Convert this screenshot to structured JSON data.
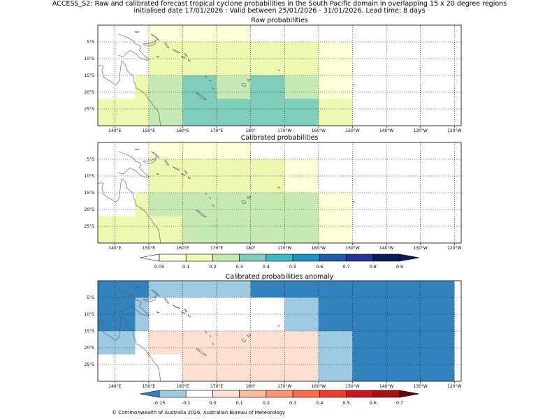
{
  "header": {
    "title_line1": "ACCESS_S2: Raw and calibrated forecast tropical cyclone probabilities in the South Pacific domain in overlapping 15 x 20 degree regions",
    "title_line2": "initialised date 17/01/2026 :  Valid between 25/01/2026 - 31/01/2026. Lead time: 8 days"
  },
  "axes": {
    "lon_labels": [
      "140°E",
      "150°E",
      "160°E",
      "170°E",
      "180°",
      "170°W",
      "160°W",
      "150°W",
      "140°W",
      "130°W",
      "120°W"
    ],
    "lat_labels": [
      "5°S",
      "10°S",
      "15°S",
      "20°S",
      "25°S"
    ]
  },
  "panels": [
    {
      "title": "Raw probabilities",
      "cells": [
        {
          "lon": [
            150,
            160
          ],
          "lat": [
            0,
            -5
          ],
          "value": 0.07
        },
        {
          "lon": [
            160,
            180
          ],
          "lat": [
            0,
            -5
          ],
          "value": 0.07
        },
        {
          "lon": [
            150,
            160
          ],
          "lat": [
            -5,
            -15
          ],
          "value": 0.15
        },
        {
          "lon": [
            160,
            200
          ],
          "lat": [
            -5,
            -15
          ],
          "value": 0.15
        },
        {
          "lon": [
            200,
            210
          ],
          "lat": [
            -5,
            -15
          ],
          "value": 0.07
        },
        {
          "lon": [
            146,
            150
          ],
          "lat": [
            -15,
            -22
          ],
          "value": 0.15
        },
        {
          "lon": [
            140,
            146
          ],
          "lat": [
            -22,
            -30
          ],
          "value": 0.15
        },
        {
          "lon": [
            146,
            150
          ],
          "lat": [
            -22,
            -30
          ],
          "value": 0.15
        },
        {
          "lon": [
            150,
            160
          ],
          "lat": [
            -15,
            -30
          ],
          "value": 0.25
        },
        {
          "lon": [
            160,
            170
          ],
          "lat": [
            -15,
            -30
          ],
          "value": 0.35
        },
        {
          "lon": [
            170,
            180
          ],
          "lat": [
            -15,
            -22
          ],
          "value": 0.25
        },
        {
          "lon": [
            170,
            180
          ],
          "lat": [
            -22,
            -30
          ],
          "value": 0.35
        },
        {
          "lon": [
            180,
            190
          ],
          "lat": [
            -15,
            -30
          ],
          "value": 0.35
        },
        {
          "lon": [
            190,
            200
          ],
          "lat": [
            -15,
            -22
          ],
          "value": 0.25
        },
        {
          "lon": [
            190,
            200
          ],
          "lat": [
            -22,
            -30
          ],
          "value": 0.35
        },
        {
          "lon": [
            200,
            210
          ],
          "lat": [
            -15,
            -22
          ],
          "value": 0.07
        },
        {
          "lon": [
            200,
            210
          ],
          "lat": [
            -22,
            -30
          ],
          "value": 0.15
        }
      ]
    },
    {
      "title": "Calibrated probabilities",
      "cells": [
        {
          "lon": [
            150,
            160
          ],
          "lat": [
            0,
            -5
          ],
          "value": 0.07
        },
        {
          "lon": [
            160,
            180
          ],
          "lat": [
            0,
            -5
          ],
          "value": 0.07
        },
        {
          "lon": [
            150,
            160
          ],
          "lat": [
            -5,
            -15
          ],
          "value": 0.15
        },
        {
          "lon": [
            160,
            190
          ],
          "lat": [
            -5,
            -15
          ],
          "value": 0.15
        },
        {
          "lon": [
            190,
            200
          ],
          "lat": [
            -5,
            -15
          ],
          "value": 0.07
        },
        {
          "lon": [
            146,
            150
          ],
          "lat": [
            -15,
            -22
          ],
          "value": 0.15
        },
        {
          "lon": [
            140,
            146
          ],
          "lat": [
            -22,
            -30
          ],
          "value": 0.15
        },
        {
          "lon": [
            146,
            150
          ],
          "lat": [
            -22,
            -30
          ],
          "value": 0.15
        },
        {
          "lon": [
            150,
            160
          ],
          "lat": [
            -15,
            -22
          ],
          "value": 0.25
        },
        {
          "lon": [
            150,
            160
          ],
          "lat": [
            -22,
            -30
          ],
          "value": 0.15
        },
        {
          "lon": [
            160,
            200
          ],
          "lat": [
            -15,
            -30
          ],
          "value": 0.25
        },
        {
          "lon": [
            200,
            210
          ],
          "lat": [
            -15,
            -30
          ],
          "value": 0.07
        }
      ]
    },
    {
      "title": "Calibrated probabilities anomaly",
      "cells": [
        {
          "lon": [
            140,
            150
          ],
          "lat": [
            0,
            -5
          ],
          "value": -0.2
        },
        {
          "lon": [
            150,
            180
          ],
          "lat": [
            0,
            -5
          ],
          "value": -0.1
        },
        {
          "lon": [
            180,
            240
          ],
          "lat": [
            0,
            -5
          ],
          "value": -0.2
        },
        {
          "lon": [
            140,
            146
          ],
          "lat": [
            -5,
            -15
          ],
          "value": -0.2
        },
        {
          "lon": [
            146,
            150
          ],
          "lat": [
            -5,
            -15
          ],
          "value": -0.1
        },
        {
          "lon": [
            190,
            200
          ],
          "lat": [
            -5,
            -15
          ],
          "value": -0.1
        },
        {
          "lon": [
            200,
            240
          ],
          "lat": [
            -5,
            -15
          ],
          "value": -0.2
        },
        {
          "lon": [
            140,
            146
          ],
          "lat": [
            -15,
            -22
          ],
          "value": -0.1
        },
        {
          "lon": [
            150,
            200
          ],
          "lat": [
            -15,
            -22
          ],
          "value": 0.05
        },
        {
          "lon": [
            200,
            210
          ],
          "lat": [
            -15,
            -30
          ],
          "value": -0.1
        },
        {
          "lon": [
            210,
            240
          ],
          "lat": [
            -15,
            -30
          ],
          "value": -0.2
        },
        {
          "lon": [
            160,
            200
          ],
          "lat": [
            -22,
            -30
          ],
          "value": 0.05
        }
      ]
    }
  ],
  "colorbars": [
    {
      "ticks": [
        "0.05",
        "0.1",
        "0.2",
        "0.3",
        "0.4",
        "0.5",
        "0.6",
        "0.7",
        "0.8",
        "0.9"
      ],
      "colors": [
        "#ffffff",
        "#ffffd9",
        "#edf8b1",
        "#c7e9b4",
        "#7fcdbb",
        "#41b6c4",
        "#1d91c0",
        "#225ea8",
        "#253494",
        "#081d58"
      ]
    },
    {
      "ticks": [
        "-0.15",
        "-0.1",
        "0.0",
        "0.1",
        "0.2",
        "0.3",
        "0.4",
        "0.5",
        "0.6",
        "0.7"
      ],
      "colors": [
        "#3182bd",
        "#9ecae1",
        "#ffffff",
        "#fee0d2",
        "#fcbba1",
        "#fc9272",
        "#fb6a4a",
        "#ef3b2c",
        "#cb181d",
        "#a50f15",
        "#67000d"
      ]
    }
  ],
  "legend_colors": {
    "p_0_05": "#ffffd9",
    "p_0_1": "#edf8b1",
    "p_0_2": "#c7e9b4",
    "p_0_3": "#7fcdbb",
    "anom_neg_0_2": "#3182bd",
    "anom_neg_0_1": "#9ecae1",
    "anom_0_05": "#fee0d2"
  },
  "footer": {
    "copyright": "© Commonwealth of Australia 2026, Australian Bureau of Meteorology"
  }
}
